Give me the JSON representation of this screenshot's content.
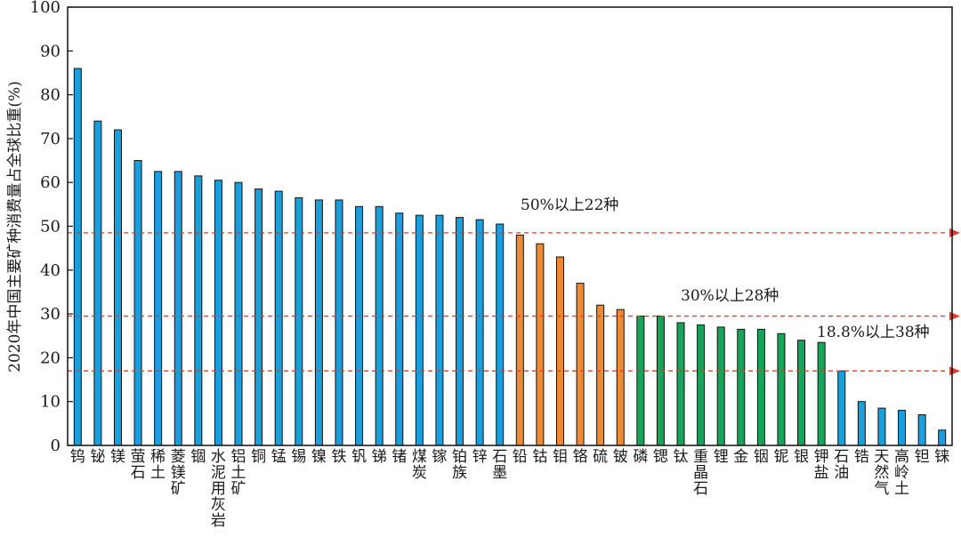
{
  "chart_data": {
    "type": "bar",
    "title": "",
    "xlabel": "",
    "ylabel": "2020年中国主要矿种消费量占全球比重(%)",
    "ylim": [
      0,
      100
    ],
    "yticks": [
      0,
      10,
      20,
      30,
      40,
      50,
      60,
      70,
      80,
      90,
      100
    ],
    "grid": false,
    "categories": [
      [
        "钨"
      ],
      [
        "铋"
      ],
      [
        "镁"
      ],
      [
        "萤石"
      ],
      [
        "稀土"
      ],
      [
        "菱镁矿"
      ],
      [
        "锢"
      ],
      [
        "水泥用灰岩"
      ],
      [
        "铝土矿"
      ],
      [
        "铜"
      ],
      [
        "锰"
      ],
      [
        "锡"
      ],
      [
        "镍"
      ],
      [
        "铁"
      ],
      [
        "钒"
      ],
      [
        "锑"
      ],
      [
        "锗"
      ],
      [
        "煤炭"
      ],
      [
        "镓"
      ],
      [
        "铂族"
      ],
      [
        "锌"
      ],
      [
        "石墨"
      ],
      [
        "铅"
      ],
      [
        "钴"
      ],
      [
        "钼"
      ],
      [
        "铬"
      ],
      [
        "硫"
      ],
      [
        "铍"
      ],
      [
        "磷"
      ],
      [
        "锶"
      ],
      [
        "钛"
      ],
      [
        "重晶石"
      ],
      [
        "锂"
      ],
      [
        "金"
      ],
      [
        "铟"
      ],
      [
        "铌"
      ],
      [
        "银"
      ],
      [
        "钾盐"
      ],
      [
        "石油"
      ],
      [
        "锆"
      ],
      [
        "天然气"
      ],
      [
        "高岭土"
      ],
      [
        "钽"
      ],
      [
        "铼"
      ]
    ],
    "series": [
      {
        "color": "#1a9fdc",
        "values": [
          86,
          74,
          72,
          65,
          62.5,
          62.5,
          61.5,
          60.5,
          60,
          58.5,
          58,
          56.5,
          56,
          56,
          54.5,
          54.5,
          53,
          52.5,
          52.5,
          52,
          51.5,
          50.5,
          null,
          null,
          null,
          null,
          null,
          null,
          null,
          null,
          null,
          null,
          null,
          null,
          null,
          null,
          null,
          null,
          17,
          10,
          8.5,
          8,
          7,
          3.5
        ]
      },
      {
        "color": "#f08a32",
        "values": [
          null,
          null,
          null,
          null,
          null,
          null,
          null,
          null,
          null,
          null,
          null,
          null,
          null,
          null,
          null,
          null,
          null,
          null,
          null,
          null,
          null,
          null,
          48,
          46,
          43,
          37,
          32,
          31,
          null,
          null,
          null,
          null,
          null,
          null,
          null,
          null,
          null,
          null,
          null,
          null,
          null,
          null,
          null,
          null
        ]
      },
      {
        "color": "#18a35a",
        "values": [
          null,
          null,
          null,
          null,
          null,
          null,
          null,
          null,
          null,
          null,
          null,
          null,
          null,
          null,
          null,
          null,
          null,
          null,
          null,
          null,
          null,
          null,
          null,
          null,
          null,
          null,
          null,
          null,
          29.5,
          29.5,
          28,
          27.5,
          27,
          26.5,
          26.5,
          25.5,
          24,
          23.5,
          null,
          null,
          null,
          null,
          null,
          null
        ]
      }
    ],
    "reference_lines": [
      {
        "y": 48.5,
        "label": "50%以上22种",
        "color": "#e8392b"
      },
      {
        "y": 29.5,
        "label": "30%以上28种",
        "color": "#e8392b"
      },
      {
        "y": 17,
        "label": "18.8%以上38种",
        "color": "#e8392b"
      }
    ]
  }
}
